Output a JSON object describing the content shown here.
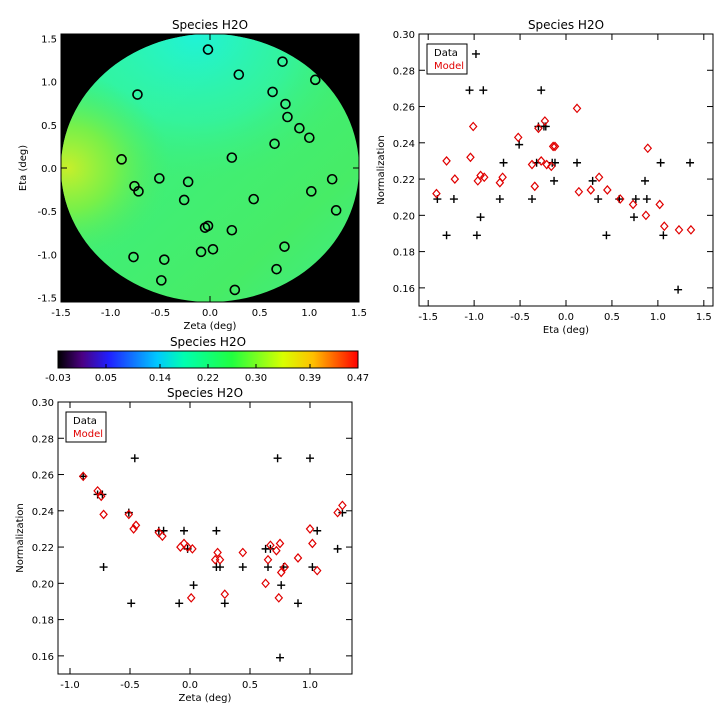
{
  "colors": {
    "data": "#000000",
    "model": "#e00000",
    "map_fill": "#3ef07a",
    "map_background": "#000000"
  },
  "icons": {
    "data_marker": "plus-icon",
    "model_marker": "diamond-icon",
    "map_marker": "circle-icon"
  },
  "chart_data": [
    {
      "id": "map",
      "type": "heatmap",
      "title": "Species H2O",
      "xlabel": "Zeta (deg)",
      "ylabel": "Eta (deg)",
      "xlim": [
        -1.5,
        1.5
      ],
      "ylim": [
        -1.55,
        1.55
      ],
      "xticks": [
        "-1.5",
        "-1.0",
        "-0.5",
        "0.0",
        "0.5",
        "1.0",
        "1.5"
      ],
      "yticks": [
        "-1.5",
        "-1.0",
        "-0.5",
        "0.0",
        "0.5",
        "1.0",
        "1.5"
      ],
      "field_range": [
        0.19,
        0.26
      ],
      "points": [
        {
          "x": -0.02,
          "y": 1.37
        },
        {
          "x": 0.29,
          "y": 1.08
        },
        {
          "x": 0.73,
          "y": 1.23
        },
        {
          "x": 1.06,
          "y": 1.02
        },
        {
          "x": -0.73,
          "y": 0.85
        },
        {
          "x": 0.63,
          "y": 0.88
        },
        {
          "x": 0.76,
          "y": 0.74
        },
        {
          "x": 0.78,
          "y": 0.59
        },
        {
          "x": 0.9,
          "y": 0.46
        },
        {
          "x": 1.0,
          "y": 0.35
        },
        {
          "x": 0.65,
          "y": 0.28
        },
        {
          "x": 0.22,
          "y": 0.12
        },
        {
          "x": -0.89,
          "y": 0.1
        },
        {
          "x": -0.51,
          "y": -0.12
        },
        {
          "x": -0.22,
          "y": -0.16
        },
        {
          "x": -0.76,
          "y": -0.21
        },
        {
          "x": -0.72,
          "y": -0.27
        },
        {
          "x": 1.23,
          "y": -0.13
        },
        {
          "x": 1.02,
          "y": -0.27
        },
        {
          "x": -0.26,
          "y": -0.37
        },
        {
          "x": 0.44,
          "y": -0.36
        },
        {
          "x": 1.27,
          "y": -0.49
        },
        {
          "x": -0.02,
          "y": -0.67
        },
        {
          "x": -0.05,
          "y": -0.69
        },
        {
          "x": 0.22,
          "y": -0.72
        },
        {
          "x": 0.75,
          "y": -0.91
        },
        {
          "x": 0.03,
          "y": -0.94
        },
        {
          "x": -0.09,
          "y": -0.97
        },
        {
          "x": -0.77,
          "y": -1.03
        },
        {
          "x": -0.46,
          "y": -1.06
        },
        {
          "x": 0.67,
          "y": -1.17
        },
        {
          "x": -0.49,
          "y": -1.3
        },
        {
          "x": 0.25,
          "y": -1.41
        }
      ]
    },
    {
      "id": "colorbar",
      "type": "colorbar",
      "title": "Species H2O",
      "range": [
        -0.03,
        0.47
      ],
      "ticks": [
        "-0.03",
        "0.05",
        "0.14",
        "0.22",
        "0.30",
        "0.39",
        "0.47"
      ]
    },
    {
      "id": "eta",
      "type": "scatter",
      "title": "Species H2O",
      "xlabel": "Eta (deg)",
      "ylabel": "Normalization",
      "xlim": [
        -1.6,
        1.6
      ],
      "ylim": [
        0.15,
        0.3
      ],
      "xticks": [
        "-1.5",
        "-1.0",
        "-0.5",
        "0.0",
        "0.5",
        "1.0",
        "1.5"
      ],
      "yticks": [
        "0.16",
        "0.18",
        "0.20",
        "0.22",
        "0.24",
        "0.26",
        "0.28",
        "0.30"
      ],
      "legend": [
        "Data",
        "Model"
      ],
      "legend_position": "top-left",
      "series": [
        {
          "name": "Data",
          "marker": "plus",
          "x": [
            -1.4,
            -1.3,
            -1.22,
            -1.05,
            -0.98,
            -0.97,
            -0.93,
            -0.9,
            -0.72,
            -0.68,
            -0.51,
            -0.37,
            -0.32,
            -0.3,
            -0.27,
            -0.24,
            -0.22,
            -0.15,
            -0.13,
            -0.12,
            0.12,
            0.29,
            0.35,
            0.44,
            0.58,
            0.74,
            0.76,
            0.86,
            0.88,
            1.03,
            1.06,
            1.22,
            1.35
          ],
          "y": [
            0.209,
            0.189,
            0.209,
            0.269,
            0.289,
            0.189,
            0.199,
            0.269,
            0.209,
            0.229,
            0.239,
            0.209,
            0.229,
            0.249,
            0.269,
            0.249,
            0.249,
            0.229,
            0.219,
            0.229,
            0.229,
            0.219,
            0.209,
            0.189,
            0.209,
            0.199,
            0.209,
            0.219,
            0.209,
            0.229,
            0.189,
            0.159,
            0.229
          ]
        },
        {
          "name": "Model",
          "marker": "diamond",
          "x": [
            -1.41,
            -1.3,
            -1.21,
            -1.04,
            -1.01,
            -0.96,
            -0.93,
            -0.89,
            -0.72,
            -0.69,
            -0.52,
            -0.37,
            -0.34,
            -0.3,
            -0.27,
            -0.23,
            -0.21,
            -0.16,
            -0.14,
            -0.12,
            0.12,
            0.14,
            0.27,
            0.36,
            0.45,
            0.59,
            0.73,
            0.87,
            0.89,
            1.02,
            1.07,
            1.23,
            1.36
          ],
          "y": [
            0.212,
            0.23,
            0.22,
            0.232,
            0.249,
            0.219,
            0.222,
            0.221,
            0.218,
            0.221,
            0.243,
            0.228,
            0.216,
            0.248,
            0.23,
            0.252,
            0.228,
            0.227,
            0.238,
            0.238,
            0.259,
            0.213,
            0.214,
            0.221,
            0.214,
            0.209,
            0.206,
            0.2,
            0.237,
            0.206,
            0.194,
            0.192,
            0.192
          ]
        }
      ]
    },
    {
      "id": "zeta",
      "type": "scatter",
      "title": "Species H2O",
      "xlabel": "Zeta (deg)",
      "ylabel": "Normalization",
      "xlim": [
        -1.1,
        1.35
      ],
      "ylim": [
        0.15,
        0.3
      ],
      "xticks": [
        "-1.0",
        "-0.5",
        "0.0",
        "0.5",
        "1.0"
      ],
      "yticks": [
        "0.16",
        "0.18",
        "0.20",
        "0.22",
        "0.24",
        "0.26",
        "0.28",
        "0.30"
      ],
      "legend": [
        "Data",
        "Model"
      ],
      "legend_position": "top-left",
      "series": [
        {
          "name": "Data",
          "marker": "plus",
          "x": [
            -0.89,
            -0.77,
            -0.73,
            -0.72,
            -0.51,
            -0.49,
            -0.46,
            -0.26,
            -0.22,
            -0.09,
            -0.05,
            -0.02,
            0.03,
            0.22,
            0.22,
            0.25,
            0.29,
            0.44,
            0.63,
            0.65,
            0.67,
            0.73,
            0.75,
            0.76,
            0.78,
            0.9,
            1.0,
            1.02,
            1.06,
            1.23,
            1.27
          ],
          "y": [
            0.259,
            0.249,
            0.249,
            0.209,
            0.239,
            0.189,
            0.269,
            0.229,
            0.229,
            0.189,
            0.229,
            0.219,
            0.199,
            0.209,
            0.229,
            0.209,
            0.189,
            0.209,
            0.219,
            0.209,
            0.219,
            0.269,
            0.159,
            0.199,
            0.209,
            0.189,
            0.269,
            0.209,
            0.229,
            0.219,
            0.239
          ]
        },
        {
          "name": "Model",
          "marker": "diamond",
          "x": [
            -0.89,
            -0.77,
            -0.74,
            -0.72,
            -0.51,
            -0.47,
            -0.45,
            -0.26,
            -0.23,
            -0.08,
            -0.05,
            -0.02,
            0.01,
            0.02,
            0.21,
            0.23,
            0.25,
            0.29,
            0.44,
            0.63,
            0.65,
            0.67,
            0.72,
            0.74,
            0.75,
            0.76,
            0.79,
            0.9,
            1.0,
            1.02,
            1.06,
            1.23,
            1.27
          ],
          "y": [
            0.259,
            0.251,
            0.248,
            0.238,
            0.238,
            0.23,
            0.232,
            0.228,
            0.226,
            0.22,
            0.222,
            0.22,
            0.192,
            0.219,
            0.213,
            0.217,
            0.213,
            0.194,
            0.217,
            0.2,
            0.213,
            0.221,
            0.218,
            0.192,
            0.222,
            0.206,
            0.209,
            0.214,
            0.23,
            0.222,
            0.207,
            0.239,
            0.243
          ]
        }
      ]
    }
  ]
}
